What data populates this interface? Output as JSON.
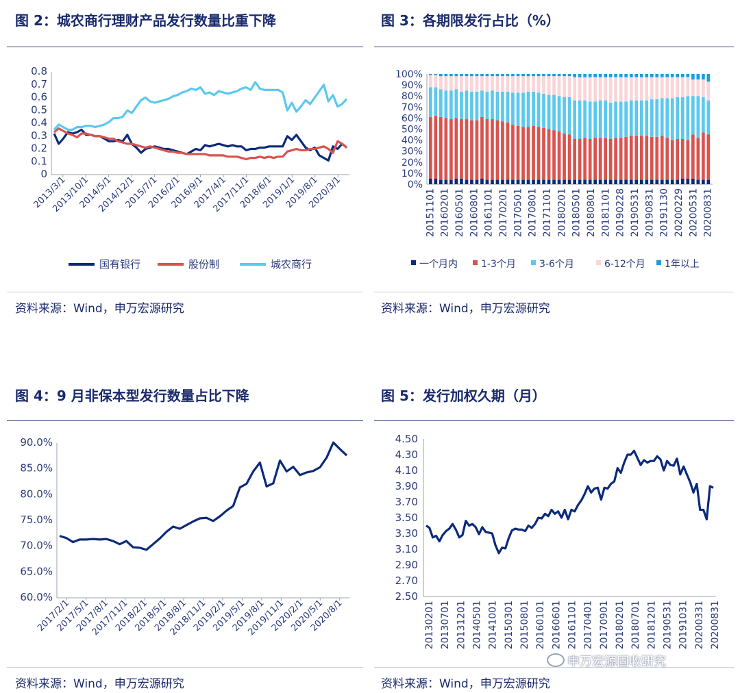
{
  "colors": {
    "navy": "#0b2a7a",
    "red": "#d9534f",
    "sky": "#5bc8ee",
    "pink": "#f9d5d8",
    "title": "#1a2a6c"
  },
  "charts": {
    "c2": {
      "title": "图 2：城农商行理财产品发行数量比重下降",
      "source": "资料来源：Wind，申万宏源研究"
    },
    "c3": {
      "title": "图 3：各期限发行占比（%）",
      "source": "资料来源：Wind，申万宏源研究"
    },
    "c4": {
      "title": "图 4：9 月非保本型发行数量占比下降",
      "source": "资料来源：Wind，申万宏源研究"
    },
    "c5": {
      "title": "图 5：发行加权久期（月）",
      "source": "资料来源：Wind，申万宏源研究"
    }
  },
  "watermark": "申万宏源固收研究",
  "chart_data": [
    {
      "type": "line",
      "yticks": [
        "0",
        "0.1",
        "0.2",
        "0.3",
        "0.4",
        "0.5",
        "0.6",
        "0.7",
        "0.8"
      ],
      "ylim": [
        0,
        0.8
      ],
      "xticks": [
        "2013/3/1",
        "2013/10/1",
        "2014/5/1",
        "2014/12/1",
        "2015/7/1",
        "2016/2/1",
        "2016/9/1",
        "2017/4/1",
        "2017/11/1",
        "2018/6/1",
        "2019/1/1",
        "2019/8/1",
        "2020/3/1"
      ],
      "series": [
        {
          "name": "国有银行",
          "color": "#0b2a7a",
          "values": [
            0.32,
            0.24,
            0.28,
            0.33,
            0.32,
            0.33,
            0.35,
            0.31,
            0.31,
            0.3,
            0.3,
            0.28,
            0.26,
            0.26,
            0.27,
            0.26,
            0.31,
            0.24,
            0.21,
            0.17,
            0.2,
            0.21,
            0.22,
            0.21,
            0.2,
            0.2,
            0.19,
            0.18,
            0.17,
            0.16,
            0.18,
            0.2,
            0.19,
            0.23,
            0.22,
            0.23,
            0.24,
            0.23,
            0.22,
            0.23,
            0.22,
            0.22,
            0.19,
            0.2,
            0.2,
            0.21,
            0.21,
            0.22,
            0.22,
            0.22,
            0.22,
            0.3,
            0.27,
            0.31,
            0.26,
            0.21,
            0.19,
            0.21,
            0.15,
            0.13,
            0.11,
            0.22,
            0.2,
            0.24,
            0.21
          ]
        },
        {
          "name": "股份制",
          "color": "#d9534f",
          "values": [
            0.33,
            0.36,
            0.34,
            0.32,
            0.31,
            0.29,
            0.32,
            0.32,
            0.31,
            0.3,
            0.3,
            0.29,
            0.28,
            0.28,
            0.26,
            0.25,
            0.24,
            0.24,
            0.23,
            0.22,
            0.21,
            0.22,
            0.21,
            0.2,
            0.19,
            0.18,
            0.18,
            0.17,
            0.17,
            0.16,
            0.16,
            0.16,
            0.16,
            0.16,
            0.15,
            0.15,
            0.15,
            0.15,
            0.14,
            0.14,
            0.14,
            0.13,
            0.12,
            0.13,
            0.13,
            0.14,
            0.13,
            0.14,
            0.13,
            0.14,
            0.14,
            0.18,
            0.19,
            0.2,
            0.19,
            0.19,
            0.2,
            0.2,
            0.21,
            0.22,
            0.2,
            0.17,
            0.26,
            0.24,
            0.21
          ]
        },
        {
          "name": "城农商行",
          "color": "#5bc8ee",
          "values": [
            0.35,
            0.39,
            0.37,
            0.35,
            0.35,
            0.37,
            0.37,
            0.38,
            0.38,
            0.37,
            0.38,
            0.39,
            0.41,
            0.44,
            0.44,
            0.45,
            0.5,
            0.48,
            0.53,
            0.58,
            0.6,
            0.57,
            0.56,
            0.57,
            0.58,
            0.59,
            0.61,
            0.62,
            0.64,
            0.65,
            0.67,
            0.66,
            0.68,
            0.63,
            0.64,
            0.62,
            0.65,
            0.64,
            0.63,
            0.64,
            0.65,
            0.67,
            0.68,
            0.66,
            0.72,
            0.67,
            0.66,
            0.66,
            0.66,
            0.66,
            0.64,
            0.5,
            0.56,
            0.49,
            0.53,
            0.58,
            0.55,
            0.6,
            0.65,
            0.7,
            0.57,
            0.62,
            0.53,
            0.55,
            0.59
          ]
        }
      ]
    },
    {
      "type": "bar",
      "stacked": true,
      "yticks": [
        "0%",
        "10%",
        "20%",
        "30%",
        "40%",
        "50%",
        "60%",
        "70%",
        "80%",
        "90%",
        "100%"
      ],
      "xticks": [
        "20151101",
        "20160201",
        "20160501",
        "20160801",
        "20161101",
        "20170201",
        "20170501",
        "20170801",
        "20171101",
        "20180201",
        "20180501",
        "20180801",
        "20181101",
        "20190228",
        "20190531",
        "20190831",
        "20191130",
        "20200229",
        "20200531",
        "20200831"
      ],
      "series": [
        {
          "name": "一个月内",
          "color": "#0b2a7a"
        },
        {
          "name": "1-3个月",
          "color": "#d9534f"
        },
        {
          "name": "3-6个月",
          "color": "#5bc8ee"
        },
        {
          "name": "6-12个月",
          "color": "#f9d5d8"
        },
        {
          "name": "1年以上",
          "color": "#1a9fd8"
        }
      ],
      "values": {
        "m1": [
          5,
          5,
          4,
          4,
          4,
          5,
          5,
          4,
          4,
          4,
          5,
          4,
          4,
          4,
          4,
          4,
          4,
          4,
          4,
          4,
          4,
          4,
          4,
          4,
          4,
          4,
          4,
          4,
          4,
          4,
          4,
          4,
          4,
          4,
          4,
          4,
          4,
          4,
          4,
          4,
          4,
          4,
          4,
          4,
          4,
          4,
          4,
          4,
          4,
          5,
          5,
          5,
          4,
          4,
          4
        ],
        "m1_3": [
          56,
          57,
          57,
          56,
          55,
          55,
          54,
          55,
          54,
          54,
          56,
          55,
          55,
          54,
          53,
          52,
          50,
          49,
          48,
          48,
          49,
          48,
          47,
          46,
          45,
          44,
          42,
          41,
          37,
          37,
          38,
          37,
          38,
          38,
          38,
          37,
          38,
          38,
          39,
          40,
          40,
          40,
          40,
          39,
          39,
          40,
          38,
          36,
          37,
          36,
          35,
          40,
          38,
          43,
          41
        ],
        "m3_6": [
          27,
          26,
          25,
          25,
          26,
          26,
          25,
          26,
          26,
          26,
          24,
          25,
          26,
          26,
          27,
          28,
          29,
          30,
          31,
          32,
          31,
          31,
          31,
          31,
          32,
          32,
          33,
          34,
          35,
          35,
          34,
          34,
          33,
          34,
          34,
          33,
          33,
          33,
          32,
          32,
          32,
          32,
          32,
          34,
          34,
          34,
          36,
          38,
          38,
          38,
          40,
          35,
          38,
          32,
          31
        ],
        "m6_12": [
          11,
          11,
          12,
          13,
          13,
          12,
          14,
          13,
          14,
          14,
          13,
          14,
          13,
          14,
          14,
          14,
          15,
          15,
          15,
          14,
          14,
          15,
          16,
          17,
          17,
          18,
          19,
          19,
          21,
          21,
          21,
          22,
          22,
          21,
          21,
          23,
          22,
          22,
          22,
          21,
          21,
          21,
          21,
          20,
          20,
          19,
          19,
          19,
          18,
          18,
          17,
          15,
          15,
          16,
          17
        ],
        "y1": [
          1,
          1,
          2,
          2,
          2,
          2,
          2,
          2,
          2,
          2,
          2,
          2,
          2,
          2,
          2,
          2,
          2,
          2,
          2,
          2,
          2,
          2,
          2,
          2,
          2,
          2,
          2,
          2,
          3,
          3,
          3,
          3,
          3,
          3,
          3,
          3,
          3,
          3,
          3,
          3,
          3,
          3,
          3,
          3,
          3,
          3,
          3,
          3,
          3,
          3,
          3,
          5,
          5,
          5,
          7
        ]
      }
    },
    {
      "type": "line",
      "yticks": [
        "60.0%",
        "65.0%",
        "70.0%",
        "75.0%",
        "80.0%",
        "85.0%",
        "90.0%"
      ],
      "ylim": [
        60,
        90
      ],
      "xticks": [
        "2017/2/1",
        "2017/5/1",
        "2017/8/1",
        "2017/11/1",
        "2018/2/1",
        "2018/5/1",
        "2018/8/1",
        "2018/11/1",
        "2019/2/1",
        "2019/5/1",
        "2019/8/1",
        "2019/11/1",
        "2020/2/1",
        "2020/5/1",
        "2020/8/1"
      ],
      "series": [
        {
          "name": "",
          "color": "#0b2a7a",
          "values": [
            72.0,
            71.6,
            70.8,
            71.3,
            71.3,
            71.4,
            71.3,
            71.4,
            71.0,
            70.4,
            71.0,
            69.8,
            69.7,
            69.3,
            70.4,
            71.5,
            72.8,
            73.8,
            73.4,
            74.1,
            74.8,
            75.4,
            75.5,
            74.9,
            75.8,
            76.9,
            77.8,
            81.4,
            82.1,
            84.5,
            86.2,
            81.6,
            82.2,
            86.6,
            84.5,
            85.4,
            83.8,
            84.3,
            84.6,
            85.3,
            87.2,
            90.1,
            88.8,
            87.6
          ]
        }
      ]
    },
    {
      "type": "line",
      "yticks": [
        "2.50",
        "2.70",
        "2.90",
        "3.10",
        "3.30",
        "3.50",
        "3.70",
        "3.90",
        "4.10",
        "4.30",
        "4.50"
      ],
      "ylim": [
        2.5,
        4.5
      ],
      "xticks": [
        "20130201",
        "20130701",
        "20131201",
        "20140501",
        "20141001",
        "20150301",
        "20150801",
        "20160101",
        "20160601",
        "20161101",
        "20170401",
        "20170901",
        "20180201",
        "20180701",
        "20181201",
        "20190531",
        "20191031",
        "20200331",
        "20200831"
      ],
      "series": [
        {
          "name": "",
          "color": "#0b2a7a",
          "values": [
            3.4,
            3.37,
            3.25,
            3.27,
            3.2,
            3.28,
            3.33,
            3.36,
            3.42,
            3.35,
            3.25,
            3.28,
            3.46,
            3.4,
            3.42,
            3.38,
            3.29,
            3.38,
            3.32,
            3.31,
            3.3,
            3.15,
            3.05,
            3.12,
            3.11,
            3.24,
            3.34,
            3.36,
            3.35,
            3.35,
            3.33,
            3.4,
            3.37,
            3.42,
            3.5,
            3.49,
            3.55,
            3.52,
            3.6,
            3.55,
            3.58,
            3.5,
            3.6,
            3.48,
            3.6,
            3.58,
            3.66,
            3.72,
            3.8,
            3.9,
            3.82,
            3.87,
            3.88,
            3.73,
            3.88,
            3.87,
            3.93,
            3.96,
            4.13,
            4.07,
            4.2,
            4.3,
            4.3,
            4.35,
            4.26,
            4.17,
            4.23,
            4.2,
            4.22,
            4.22,
            4.28,
            4.24,
            4.1,
            4.22,
            4.17,
            4.16,
            4.25,
            4.05,
            4.15,
            4.05,
            3.95,
            3.82,
            3.93,
            3.6,
            3.6,
            3.48,
            3.9,
            3.88
          ]
        }
      ]
    }
  ]
}
